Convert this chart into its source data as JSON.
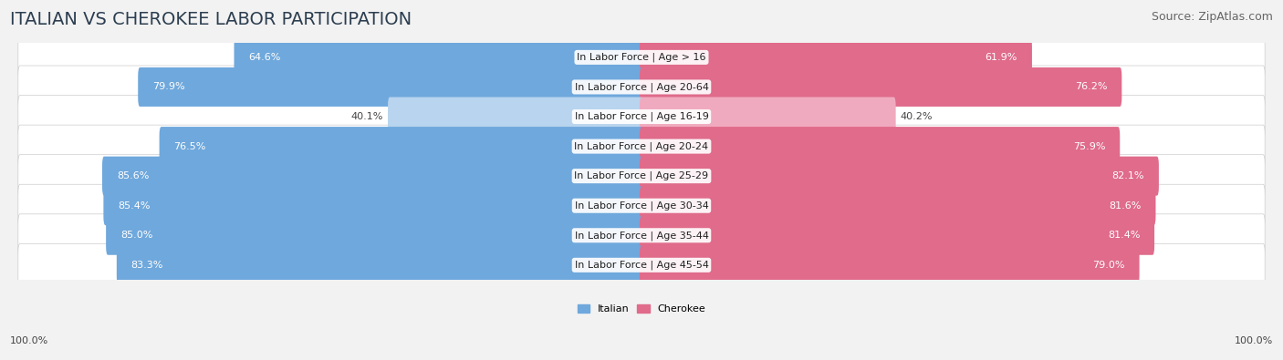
{
  "title": "ITALIAN VS CHEROKEE LABOR PARTICIPATION",
  "source": "Source: ZipAtlas.com",
  "categories": [
    "In Labor Force | Age > 16",
    "In Labor Force | Age 20-64",
    "In Labor Force | Age 16-19",
    "In Labor Force | Age 20-24",
    "In Labor Force | Age 25-29",
    "In Labor Force | Age 30-34",
    "In Labor Force | Age 35-44",
    "In Labor Force | Age 45-54"
  ],
  "italian_values": [
    64.6,
    79.9,
    40.1,
    76.5,
    85.6,
    85.4,
    85.0,
    83.3
  ],
  "cherokee_values": [
    61.9,
    76.2,
    40.2,
    75.9,
    82.1,
    81.6,
    81.4,
    79.0
  ],
  "italian_color_strong": "#6fa8dc",
  "italian_color_light": "#b8d4ee",
  "cherokee_color_strong": "#e06b8b",
  "cherokee_color_light": "#f0aabf",
  "bar_height": 0.72,
  "background_color": "#f2f2f2",
  "row_bg_even": "#ebebeb",
  "row_bg_odd": "#f8f8f8",
  "max_value": 100.0,
  "legend_italian": "Italian",
  "legend_cherokee": "Cherokee",
  "title_fontsize": 14,
  "source_fontsize": 9,
  "label_fontsize": 8,
  "value_fontsize": 8,
  "axis_label_fontsize": 8,
  "bottom_label": "100.0%",
  "light_threshold": 55.0
}
